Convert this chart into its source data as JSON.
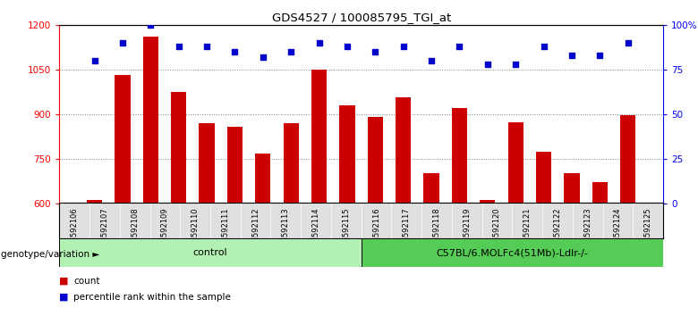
{
  "title": "GDS4527 / 100085795_TGI_at",
  "samples": [
    "GSM592106",
    "GSM592107",
    "GSM592108",
    "GSM592109",
    "GSM592110",
    "GSM592111",
    "GSM592112",
    "GSM592113",
    "GSM592114",
    "GSM592115",
    "GSM592116",
    "GSM592117",
    "GSM592118",
    "GSM592119",
    "GSM592120",
    "GSM592121",
    "GSM592122",
    "GSM592123",
    "GSM592124",
    "GSM592125"
  ],
  "counts": [
    613,
    1033,
    1163,
    975,
    870,
    860,
    770,
    870,
    1050,
    930,
    893,
    958,
    703,
    922,
    613,
    875,
    775,
    703,
    673,
    898
  ],
  "percentile_ranks": [
    80,
    90,
    100,
    88,
    88,
    85,
    82,
    85,
    90,
    88,
    85,
    88,
    80,
    88,
    78,
    78,
    88,
    83,
    83,
    90
  ],
  "control_samples": 10,
  "group1_label": "control",
  "group2_label": "C57BL/6.MOLFc4(51Mb)-Ldlr-/-",
  "ylim_left": [
    600,
    1200
  ],
  "ylim_right": [
    0,
    100
  ],
  "yticks_left": [
    600,
    750,
    900,
    1050,
    1200
  ],
  "yticks_right": [
    0,
    25,
    50,
    75,
    100
  ],
  "bar_color": "#cc0000",
  "dot_color": "#0000cc",
  "group1_color": "#b3f0b3",
  "group2_color": "#55cc55",
  "bar_width": 0.55,
  "legend_count_label": "count",
  "legend_pct_label": "percentile rank within the sample",
  "ymin": 600
}
